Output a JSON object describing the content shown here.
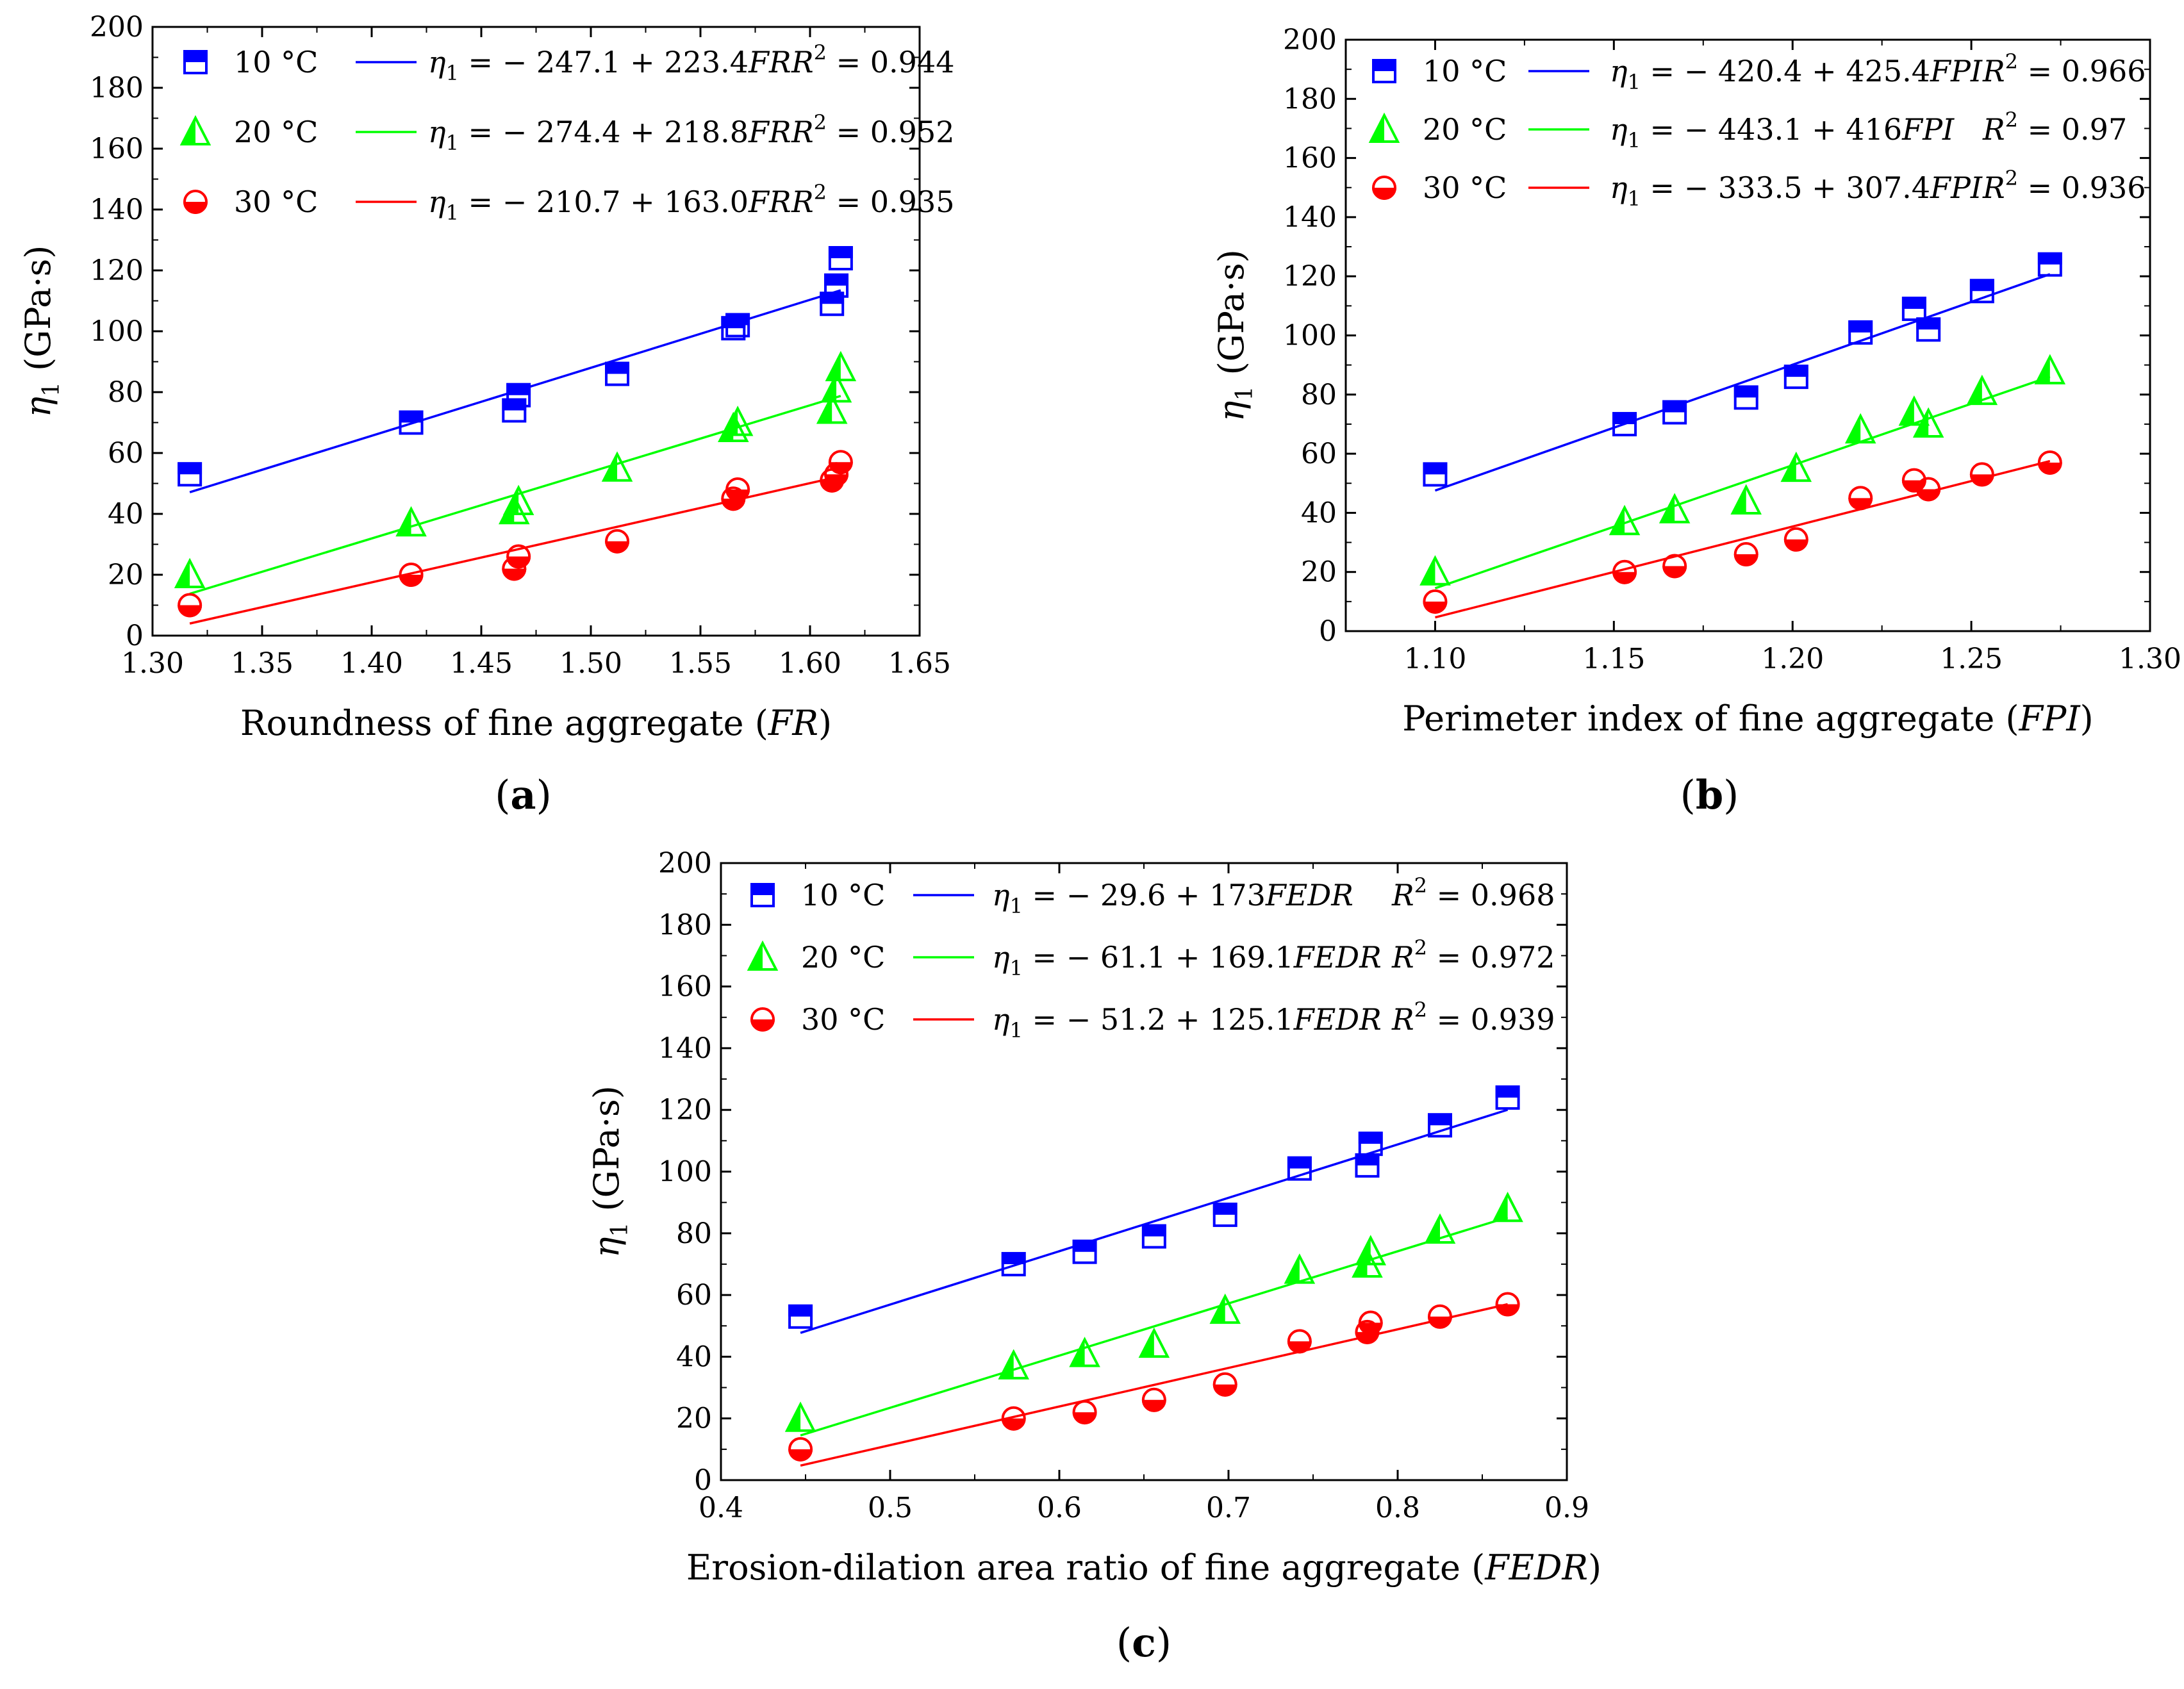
{
  "figure": {
    "panels": [
      {
        "id": "a",
        "label": "a",
        "chart_data": {
          "type": "scatter",
          "xlabel": "Roundness of fine aggregate",
          "xlabel_symbol": "FR",
          "ylabel_symbol": "η",
          "ylabel_sub": "1",
          "ylabel_unit": "(GPa·s)",
          "xlim": [
            1.3,
            1.65
          ],
          "ylim": [
            0,
            200
          ],
          "xticks": [
            1.3,
            1.35,
            1.4,
            1.45,
            1.5,
            1.55,
            1.6,
            1.65
          ],
          "xtick_labels": [
            "1.30",
            "1.35",
            "1.40",
            "1.45",
            "1.50",
            "1.55",
            "1.60",
            "1.65"
          ],
          "yticks": [
            0,
            20,
            40,
            60,
            80,
            100,
            120,
            140,
            160,
            180,
            200
          ],
          "ytick_labels": [
            "0",
            "20",
            "40",
            "60",
            "80",
            "100",
            "120",
            "140",
            "160",
            "180",
            "200"
          ],
          "grid": false,
          "legend_position": "top-left",
          "series": [
            {
              "name": "10 °C",
              "color": "#0000ff",
              "marker": "square-half",
              "x": [
                1.317,
                1.418,
                1.465,
                1.467,
                1.512,
                1.565,
                1.567,
                1.61,
                1.612,
                1.614
              ],
              "y": [
                53,
                70,
                74,
                79,
                86,
                101,
                102,
                109,
                115,
                124
              ],
              "fit": {
                "intercept": -247.1,
                "slope": 223.4,
                "x_range": [
                  1.317,
                  1.614
                ]
              },
              "equation": [
                "η",
                "1",
                " = − 247.1 + 223.4",
                "FR"
              ],
              "r2_text": [
                "R",
                "2",
                " = 0.944"
              ]
            },
            {
              "name": "20 °C",
              "color": "#00ff00",
              "marker": "triangle-half",
              "x": [
                1.317,
                1.418,
                1.465,
                1.467,
                1.512,
                1.565,
                1.567,
                1.61,
                1.612,
                1.614
              ],
              "y": [
                20,
                37,
                41,
                44,
                55,
                68,
                70,
                74,
                81,
                88
              ],
              "fit": {
                "intercept": -274.4,
                "slope": 218.8,
                "x_range": [
                  1.317,
                  1.614
                ]
              },
              "equation": [
                "η",
                "1",
                " = − 274.4 + 218.8",
                "FR"
              ],
              "r2_text": [
                "R",
                "2",
                " = 0.952"
              ]
            },
            {
              "name": "30 °C",
              "color": "#ff0000",
              "marker": "circle-half",
              "x": [
                1.317,
                1.418,
                1.465,
                1.467,
                1.512,
                1.565,
                1.567,
                1.61,
                1.612,
                1.614
              ],
              "y": [
                10,
                20,
                22,
                26,
                31,
                45,
                48,
                51,
                53,
                57
              ],
              "fit": {
                "intercept": -210.7,
                "slope": 163.0,
                "x_range": [
                  1.317,
                  1.614
                ]
              },
              "equation": [
                "η",
                "1",
                " = − 210.7 + 163.0",
                "FR"
              ],
              "r2_text": [
                "R",
                "2",
                " = 0.935"
              ]
            }
          ]
        }
      },
      {
        "id": "b",
        "label": "b",
        "chart_data": {
          "type": "scatter",
          "xlabel": "Perimeter index of fine aggregate",
          "xlabel_symbol": "FPI",
          "ylabel_symbol": "η",
          "ylabel_sub": "1",
          "ylabel_unit": "(GPa·s)",
          "xlim": [
            1.075,
            1.3
          ],
          "ylim": [
            0,
            200
          ],
          "xticks": [
            1.1,
            1.15,
            1.2,
            1.25,
            1.3
          ],
          "xtick_labels": [
            "1.10",
            "1.15",
            "1.20",
            "1.25",
            "1.30"
          ],
          "yticks": [
            0,
            20,
            40,
            60,
            80,
            100,
            120,
            140,
            160,
            180,
            200
          ],
          "ytick_labels": [
            "0",
            "20",
            "40",
            "60",
            "80",
            "100",
            "120",
            "140",
            "160",
            "180",
            "200"
          ],
          "grid": false,
          "legend_position": "top-left",
          "series": [
            {
              "name": "10 °C",
              "color": "#0000ff",
              "marker": "square-half",
              "x": [
                1.1,
                1.153,
                1.167,
                1.187,
                1.201,
                1.219,
                1.234,
                1.238,
                1.253,
                1.272
              ],
              "y": [
                53,
                70,
                74,
                79,
                86,
                101,
                109,
                102,
                115,
                124
              ],
              "fit": {
                "intercept": -420.4,
                "slope": 425.4,
                "x_range": [
                  1.1,
                  1.272
                ]
              },
              "equation": [
                "η",
                "1",
                " = − 420.4 + 425.4",
                "FPI"
              ],
              "r2_text": [
                "R",
                "2",
                " = 0.966"
              ]
            },
            {
              "name": "20 °C",
              "color": "#00ff00",
              "marker": "triangle-half",
              "x": [
                1.1,
                1.153,
                1.167,
                1.187,
                1.201,
                1.219,
                1.234,
                1.238,
                1.253,
                1.272
              ],
              "y": [
                20,
                37,
                41,
                44,
                55,
                68,
                74,
                70,
                81,
                88
              ],
              "fit": {
                "intercept": -443.1,
                "slope": 416,
                "x_range": [
                  1.1,
                  1.272
                ]
              },
              "equation": [
                "η",
                "1",
                " = − 443.1 + 416",
                "FPI"
              ],
              "r2_text": [
                "R",
                "2",
                " = 0.97"
              ]
            },
            {
              "name": "30 °C",
              "color": "#ff0000",
              "marker": "circle-half",
              "x": [
                1.1,
                1.153,
                1.167,
                1.187,
                1.201,
                1.219,
                1.234,
                1.238,
                1.253,
                1.272
              ],
              "y": [
                10,
                20,
                22,
                26,
                31,
                45,
                51,
                48,
                53,
                57
              ],
              "fit": {
                "intercept": -333.5,
                "slope": 307.4,
                "x_range": [
                  1.1,
                  1.272
                ]
              },
              "equation": [
                "η",
                "1",
                " = − 333.5 + 307.4",
                "FPI"
              ],
              "r2_text": [
                "R",
                "2",
                " = 0.936"
              ]
            }
          ]
        }
      },
      {
        "id": "c",
        "label": "c",
        "chart_data": {
          "type": "scatter",
          "xlabel": "Erosion-dilation area ratio of fine aggregate",
          "xlabel_symbol": "FEDR",
          "ylabel_symbol": "η",
          "ylabel_sub": "1",
          "ylabel_unit": "(GPa·s)",
          "xlim": [
            0.4,
            0.9
          ],
          "ylim": [
            0,
            200
          ],
          "xticks": [
            0.4,
            0.5,
            0.6,
            0.7,
            0.8,
            0.9
          ],
          "xtick_labels": [
            "0.4",
            "0.5",
            "0.6",
            "0.7",
            "0.8",
            "0.9"
          ],
          "yticks": [
            0,
            20,
            40,
            60,
            80,
            100,
            120,
            140,
            160,
            180,
            200
          ],
          "ytick_labels": [
            "0",
            "20",
            "40",
            "60",
            "80",
            "100",
            "120",
            "140",
            "160",
            "180",
            "200"
          ],
          "grid": false,
          "legend_position": "top-left",
          "series": [
            {
              "name": "10 °C",
              "color": "#0000ff",
              "marker": "square-half",
              "x": [
                0.447,
                0.573,
                0.615,
                0.656,
                0.698,
                0.742,
                0.782,
                0.784,
                0.825,
                0.865
              ],
              "y": [
                53,
                70,
                74,
                79,
                86,
                101,
                102,
                109,
                115,
                124
              ],
              "fit": {
                "intercept": -29.6,
                "slope": 173,
                "x_range": [
                  0.447,
                  0.865
                ]
              },
              "equation": [
                "η",
                "1",
                " = − 29.6 + 173",
                "FEDR"
              ],
              "r2_text": [
                "R",
                "2",
                " = 0.968"
              ]
            },
            {
              "name": "20 °C",
              "color": "#00ff00",
              "marker": "triangle-half",
              "x": [
                0.447,
                0.573,
                0.615,
                0.656,
                0.698,
                0.742,
                0.782,
                0.784,
                0.825,
                0.865
              ],
              "y": [
                20,
                37,
                41,
                44,
                55,
                68,
                70,
                74,
                81,
                88
              ],
              "fit": {
                "intercept": -61.1,
                "slope": 169.1,
                "x_range": [
                  0.447,
                  0.865
                ]
              },
              "equation": [
                "η",
                "1",
                " = − 61.1 + 169.1",
                "FEDR"
              ],
              "r2_text": [
                "R",
                "2",
                " = 0.972"
              ]
            },
            {
              "name": "30 °C",
              "color": "#ff0000",
              "marker": "circle-half",
              "x": [
                0.447,
                0.573,
                0.615,
                0.656,
                0.698,
                0.742,
                0.782,
                0.784,
                0.825,
                0.865
              ],
              "y": [
                10,
                20,
                22,
                26,
                31,
                45,
                48,
                51,
                53,
                57
              ],
              "fit": {
                "intercept": -51.2,
                "slope": 125.1,
                "x_range": [
                  0.447,
                  0.865
                ]
              },
              "equation": [
                "η",
                "1",
                " = − 51.2 + 125.1",
                "FEDR"
              ],
              "r2_text": [
                "R",
                "2",
                " = 0.939"
              ]
            }
          ]
        }
      }
    ]
  }
}
